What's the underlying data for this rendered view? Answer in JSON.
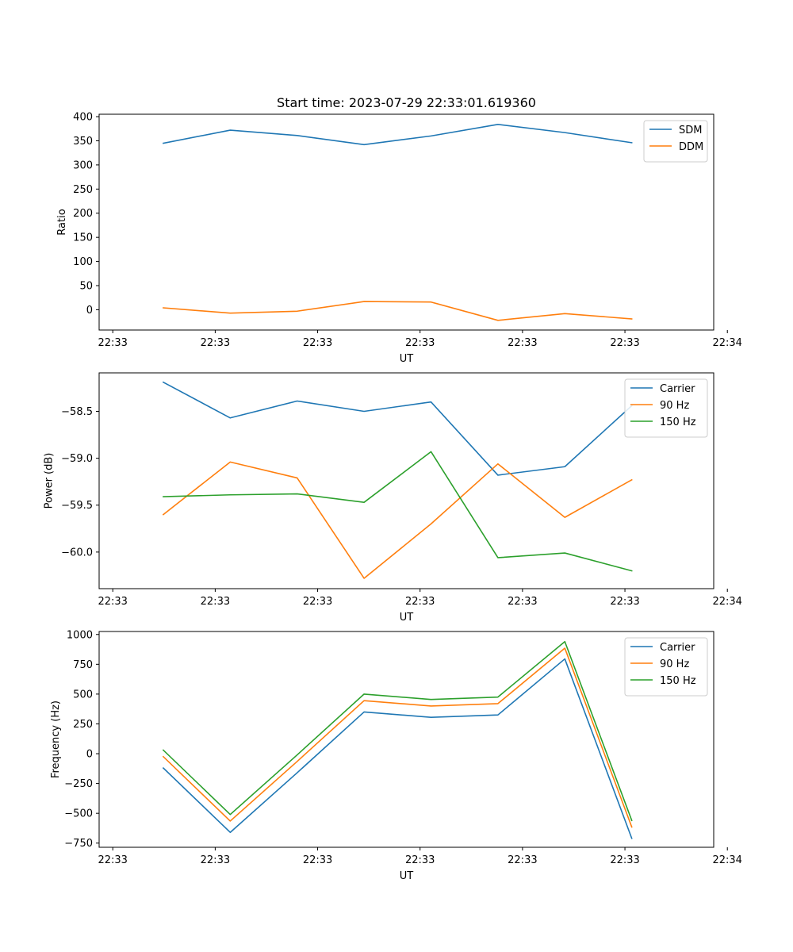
{
  "figure_title": "Start time: 2023-07-29 22:33:01.619360",
  "colors": {
    "series1": "#1f77b4",
    "series2": "#ff7f0e",
    "series3": "#2ca02c",
    "axis": "#000000",
    "legend_border": "#cccccc"
  },
  "chart_data": [
    {
      "type": "line",
      "title": "Start time: 2023-07-29 22:33:01.619360",
      "xlabel": "UT",
      "ylabel": "Ratio",
      "xlim": [
        0,
        9
      ],
      "ylim": [
        -42,
        405
      ],
      "x_ticks": [
        0.2,
        1.7,
        3.2,
        4.7,
        6.2,
        7.7,
        9.2
      ],
      "x_tick_labels": [
        "22:33",
        "22:33",
        "22:33",
        "22:33",
        "22:33",
        "22:33",
        "22:34"
      ],
      "y_ticks": [
        0,
        50,
        100,
        150,
        200,
        250,
        300,
        350,
        400
      ],
      "y_tick_labels": [
        "0",
        "50",
        "100",
        "150",
        "200",
        "250",
        "300",
        "350",
        "400"
      ],
      "x": [
        0.94,
        1.92,
        2.9,
        3.88,
        4.86,
        5.84,
        6.82,
        7.8
      ],
      "series": [
        {
          "name": "SDM",
          "values": [
            345,
            372,
            361,
            342,
            360,
            384,
            367,
            346
          ]
        },
        {
          "name": "DDM",
          "values": [
            4,
            -7,
            -3,
            17,
            16,
            -22,
            -8,
            -19
          ]
        }
      ],
      "legend": "upper right"
    },
    {
      "type": "line",
      "title": "",
      "xlabel": "UT",
      "ylabel": "Power (dB)",
      "xlim": [
        0,
        9
      ],
      "ylim": [
        -60.39,
        -58.09
      ],
      "x_ticks": [
        0.2,
        1.7,
        3.2,
        4.7,
        6.2,
        7.7,
        9.2
      ],
      "x_tick_labels": [
        "22:33",
        "22:33",
        "22:33",
        "22:33",
        "22:33",
        "22:33",
        "22:34"
      ],
      "y_ticks": [
        -60.0,
        -59.5,
        -59.0,
        -58.5
      ],
      "y_tick_labels": [
        "−60.0",
        "−59.5",
        "−59.0",
        "−58.5"
      ],
      "x": [
        0.94,
        1.92,
        2.9,
        3.88,
        4.86,
        5.84,
        6.82,
        7.8
      ],
      "series": [
        {
          "name": "Carrier",
          "values": [
            -58.19,
            -58.57,
            -58.39,
            -58.5,
            -58.4,
            -59.18,
            -59.09,
            -58.44
          ]
        },
        {
          "name": "90 Hz",
          "values": [
            -59.6,
            -59.04,
            -59.21,
            -60.28,
            -59.7,
            -59.06,
            -59.63,
            -59.23
          ]
        },
        {
          "name": "150 Hz",
          "values": [
            -59.41,
            -59.39,
            -59.38,
            -59.47,
            -58.93,
            -60.06,
            -60.01,
            -60.2
          ]
        }
      ],
      "legend": "upper right"
    },
    {
      "type": "line",
      "title": "",
      "xlabel": "UT",
      "ylabel": "Frequency (Hz)",
      "xlim": [
        0,
        9
      ],
      "ylim": [
        -785,
        1025
      ],
      "x_ticks": [
        0.2,
        1.7,
        3.2,
        4.7,
        6.2,
        7.7,
        9.2
      ],
      "x_tick_labels": [
        "22:33",
        "22:33",
        "22:33",
        "22:33",
        "22:33",
        "22:33",
        "22:34"
      ],
      "y_ticks": [
        -750,
        -500,
        -250,
        0,
        250,
        500,
        750,
        1000
      ],
      "y_tick_labels": [
        "−750",
        "−500",
        "−250",
        "0",
        "250",
        "500",
        "750",
        "1000"
      ],
      "x": [
        0.94,
        1.92,
        2.9,
        3.88,
        4.86,
        5.84,
        6.82,
        7.8
      ],
      "series": [
        {
          "name": "Carrier",
          "values": [
            -120,
            -660,
            -160,
            350,
            305,
            325,
            795,
            -710
          ]
        },
        {
          "name": "90 Hz",
          "values": [
            -25,
            -565,
            -65,
            445,
            400,
            420,
            885,
            -615
          ]
        },
        {
          "name": "150 Hz",
          "values": [
            30,
            -510,
            -10,
            500,
            455,
            475,
            940,
            -560
          ]
        }
      ],
      "legend": "upper right"
    }
  ]
}
